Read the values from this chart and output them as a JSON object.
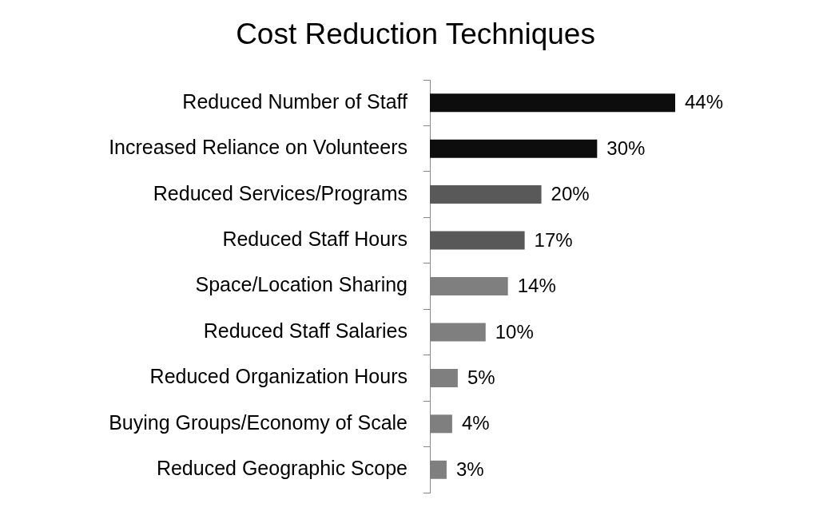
{
  "chart_data": {
    "type": "bar",
    "orientation": "horizontal",
    "title": "Cost Reduction Techniques",
    "categories": [
      "Reduced Number of Staff",
      "Increased Reliance on Volunteers",
      "Reduced Services/Programs",
      "Reduced Staff Hours",
      "Space/Location Sharing",
      "Reduced Staff Salaries",
      "Reduced Organization Hours",
      "Buying Groups/Economy of Scale",
      "Reduced Geographic Scope"
    ],
    "values": [
      44,
      30,
      20,
      17,
      14,
      10,
      5,
      4,
      3
    ],
    "colors": [
      "#0d0d0d",
      "#0d0d0d",
      "#595959",
      "#595959",
      "#7f7f7f",
      "#7f7f7f",
      "#7f7f7f",
      "#7f7f7f",
      "#7f7f7f"
    ],
    "value_labels": [
      "44%",
      "30%",
      "20%",
      "17%",
      "14%",
      "10%",
      "5%",
      "4%",
      "3%"
    ],
    "legend": false
  }
}
